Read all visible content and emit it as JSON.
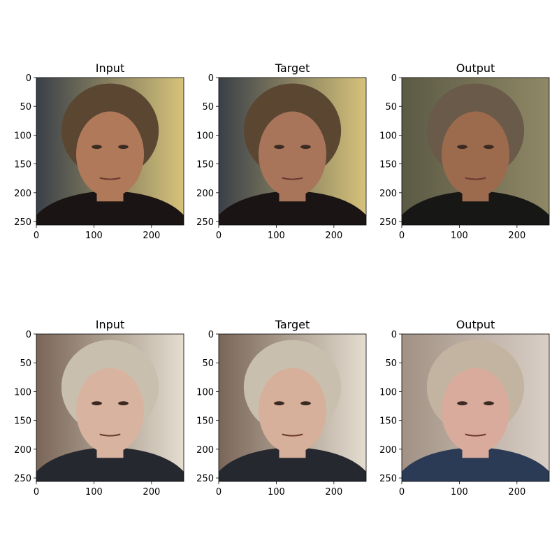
{
  "figure": {
    "rows": [
      {
        "panels": [
          {
            "title": "Input",
            "image": "photo-long-haired-man-input",
            "palette": {
              "bg": "#3a4048",
              "bg_hi": "#d6c27a",
              "skin": "#b07a5a",
              "hair": "#5b4632",
              "shirt": "#1a1514"
            }
          },
          {
            "title": "Target",
            "image": "photo-long-haired-man-target",
            "palette": {
              "bg": "#3a4048",
              "bg_hi": "#d6c27a",
              "skin": "#a8745a",
              "hair": "#5b4632",
              "shirt": "#1a1514"
            }
          },
          {
            "title": "Output",
            "image": "photo-long-haired-man-output",
            "palette": {
              "bg": "#5b5a44",
              "bg_hi": "#8f8866",
              "skin": "#9c6a4c",
              "hair": "#6a5a4a",
              "shirt": "#171816"
            }
          }
        ]
      },
      {
        "panels": [
          {
            "title": "Input",
            "image": "photo-older-man-input",
            "palette": {
              "bg": "#7a6658",
              "bg_hi": "#e4ddd0",
              "skin": "#d8b4a0",
              "hair": "#c9bfae",
              "shirt": "#262830"
            }
          },
          {
            "title": "Target",
            "image": "photo-older-man-target",
            "palette": {
              "bg": "#7a6658",
              "bg_hi": "#e4ddd0",
              "skin": "#d6b09a",
              "hair": "#c9bfae",
              "shirt": "#262830"
            }
          },
          {
            "title": "Output",
            "image": "photo-older-man-output",
            "palette": {
              "bg": "#a29184",
              "bg_hi": "#d9cfc6",
              "skin": "#d9ab9c",
              "hair": "#c2b4a0",
              "shirt": "#2c3b55"
            }
          }
        ]
      }
    ],
    "axes": {
      "x_ticks": [
        "0",
        "100",
        "200"
      ],
      "x_tick_values": [
        0,
        100,
        200
      ],
      "y_ticks": [
        "0",
        "50",
        "100",
        "150",
        "200",
        "250"
      ],
      "y_tick_values": [
        0,
        50,
        100,
        150,
        200,
        250
      ],
      "range": [
        0,
        256
      ]
    }
  }
}
